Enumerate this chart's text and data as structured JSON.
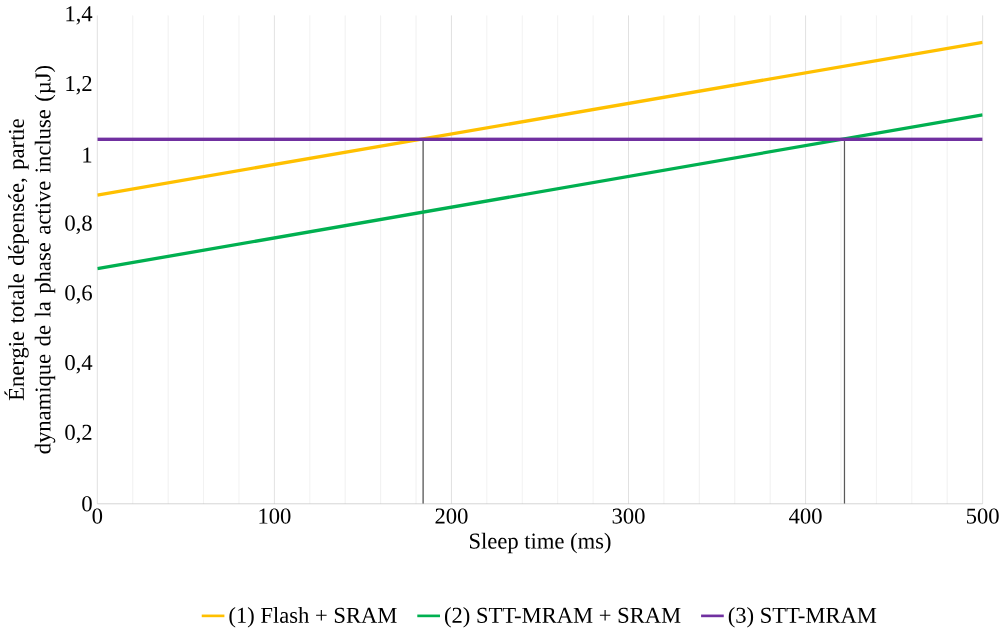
{
  "chart_data": {
    "type": "line",
    "xlabel": "Sleep time (ms)",
    "ylabel": "Énergie totale dépensée, partie dynamique de la phase active incluse (µJ)",
    "x": [
      0,
      500
    ],
    "series": [
      {
        "name": "(1) Flash + SRAM",
        "color": "#ffc000",
        "values": [
          0.885,
          1.323
        ]
      },
      {
        "name": "(2) STT-MRAM + SRAM",
        "color": "#00b050",
        "values": [
          0.674,
          1.115
        ]
      },
      {
        "name": "(3) STT-MRAM",
        "color": "#7030a0",
        "values": [
          1.045,
          1.045
        ]
      }
    ],
    "xlim": [
      0,
      500
    ],
    "xticks": [
      0,
      100,
      200,
      300,
      400,
      500
    ],
    "ylim": [
      0,
      1.4
    ],
    "yticks": [
      0,
      {
        "value": 0.2,
        "label": "0,2"
      },
      {
        "value": 0.4,
        "label": "0,4"
      },
      {
        "value": 0.6,
        "label": "0,6"
      },
      {
        "value": 0.8,
        "label": "0,8"
      },
      1,
      {
        "value": 1.2,
        "label": "1,2"
      },
      {
        "value": 1.4,
        "label": "1,4"
      }
    ],
    "ref_lines": [
      {
        "axis": "x",
        "value": 184,
        "color": "#595959"
      },
      {
        "axis": "x",
        "value": 422,
        "color": "#595959"
      }
    ],
    "grid": "x",
    "legend": "bottom",
    "marker": "none",
    "line_style": "solid"
  }
}
